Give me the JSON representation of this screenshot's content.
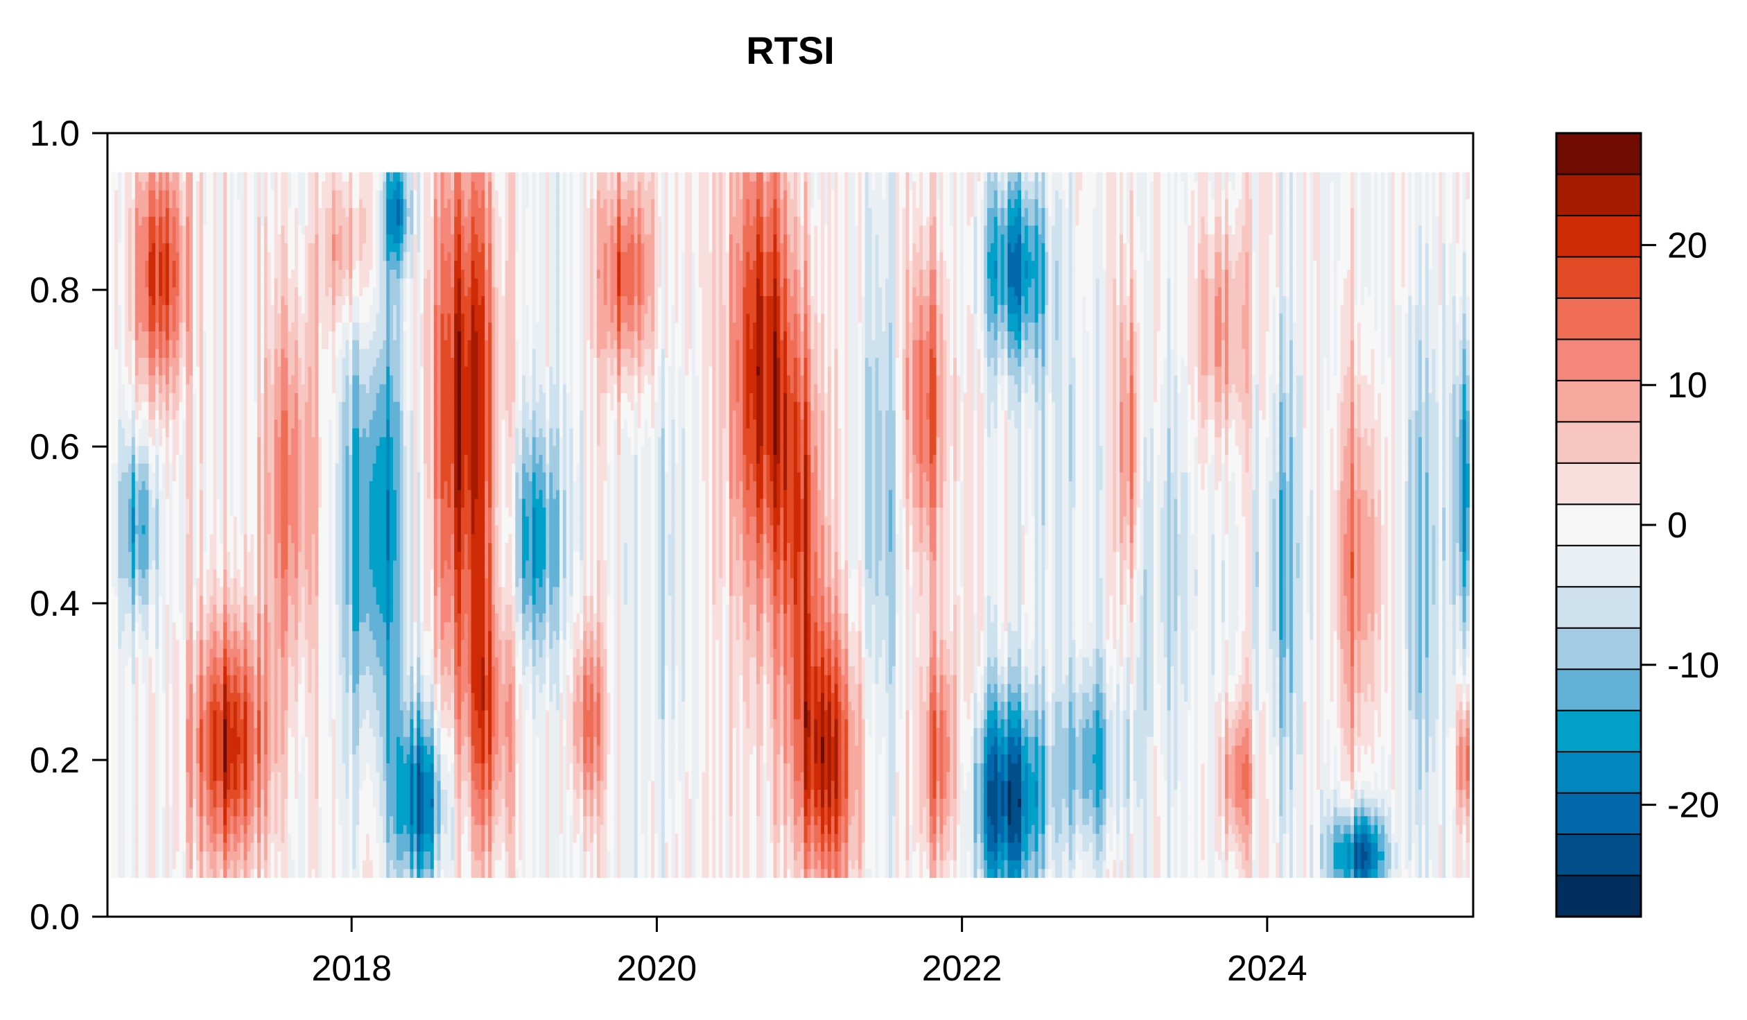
{
  "chart_data": {
    "type": "heatmap",
    "title": "RTSI",
    "xlabel": "",
    "ylabel": "",
    "x_range": [
      2016.4,
      2025.35
    ],
    "y_range": [
      0.0,
      1.0
    ],
    "filled_y_range": [
      0.05,
      0.95
    ],
    "x_ticks": [
      2018,
      2020,
      2022,
      2024
    ],
    "x_tick_labels": [
      "2018",
      "2020",
      "2022",
      "2024"
    ],
    "y_ticks": [
      0.0,
      0.2,
      0.4,
      0.6,
      0.8,
      1.0
    ],
    "y_tick_labels": [
      "0.0",
      "0.2",
      "0.4",
      "0.6",
      "0.8",
      "1.0"
    ],
    "color_scale": {
      "min": -28,
      "max": 28,
      "ticks": [
        -20,
        -10,
        0,
        10,
        20
      ],
      "tick_labels": [
        "-20",
        "-10",
        "0",
        "10",
        "20"
      ],
      "colors": [
        "#002f5e",
        "#004f8a",
        "#0068ab",
        "#0087bd",
        "#00a0c8",
        "#62b1d7",
        "#a3cce3",
        "#cde1ee",
        "#eaeff3",
        "#f7f7f7",
        "#f9dede",
        "#f8c6c0",
        "#f7a89f",
        "#f4877a",
        "#ef6c55",
        "#e24b25",
        "#cd2a05",
        "#a61b00",
        "#6f0b00"
      ]
    },
    "grid": false,
    "legend_placement": "right"
  }
}
